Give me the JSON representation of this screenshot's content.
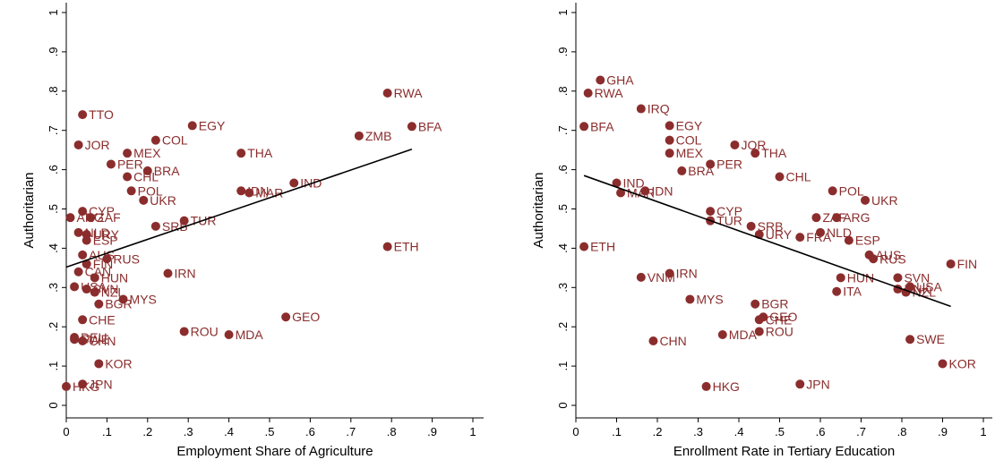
{
  "chart_data": [
    {
      "type": "scatter",
      "xlabel": "Employment Share of Agriculture",
      "ylabel": "Authoritarian",
      "xlim": [
        0,
        1
      ],
      "ylim": [
        0,
        1
      ],
      "xticks": [
        "0",
        ".1",
        ".2",
        ".3",
        ".4",
        ".5",
        ".6",
        ".7",
        ".8",
        ".9",
        "1"
      ],
      "yticks": [
        "0",
        ".1",
        ".2",
        ".3",
        ".4",
        ".5",
        ".6",
        ".7",
        ".8",
        ".9",
        "1"
      ],
      "marker_color": "#8b2d2d",
      "fit_line": {
        "x": [
          0.0,
          0.85
        ],
        "y": [
          0.352,
          0.652
        ]
      },
      "points": [
        {
          "label": "RWA",
          "x": 0.79,
          "y": 0.795
        },
        {
          "label": "BFA",
          "x": 0.85,
          "y": 0.71
        },
        {
          "label": "ZMB",
          "x": 0.72,
          "y": 0.686
        },
        {
          "label": "TTO",
          "x": 0.04,
          "y": 0.74
        },
        {
          "label": "EGY",
          "x": 0.31,
          "y": 0.712
        },
        {
          "label": "JOR",
          "x": 0.03,
          "y": 0.663
        },
        {
          "label": "COL",
          "x": 0.22,
          "y": 0.675
        },
        {
          "label": "MEX",
          "x": 0.15,
          "y": 0.642
        },
        {
          "label": "THA",
          "x": 0.43,
          "y": 0.642
        },
        {
          "label": "PER",
          "x": 0.11,
          "y": 0.614
        },
        {
          "label": "BRA",
          "x": 0.2,
          "y": 0.597
        },
        {
          "label": "CHL",
          "x": 0.15,
          "y": 0.582
        },
        {
          "label": "IND",
          "x": 0.56,
          "y": 0.566
        },
        {
          "label": "POL",
          "x": 0.16,
          "y": 0.546
        },
        {
          "label": "IDN",
          "x": 0.43,
          "y": 0.546
        },
        {
          "label": "MAR",
          "x": 0.45,
          "y": 0.541
        },
        {
          "label": "UKR",
          "x": 0.19,
          "y": 0.522
        },
        {
          "label": "CYP",
          "x": 0.04,
          "y": 0.494
        },
        {
          "label": "ARG",
          "x": 0.01,
          "y": 0.478
        },
        {
          "label": "ZAF",
          "x": 0.06,
          "y": 0.478
        },
        {
          "label": "TUR",
          "x": 0.29,
          "y": 0.47
        },
        {
          "label": "SRB",
          "x": 0.22,
          "y": 0.456
        },
        {
          "label": "NLD",
          "x": 0.03,
          "y": 0.44
        },
        {
          "label": "URY",
          "x": 0.05,
          "y": 0.435
        },
        {
          "label": "ESP",
          "x": 0.05,
          "y": 0.42
        },
        {
          "label": "ETH",
          "x": 0.79,
          "y": 0.404
        },
        {
          "label": "AUS",
          "x": 0.04,
          "y": 0.383
        },
        {
          "label": "RUS",
          "x": 0.1,
          "y": 0.373
        },
        {
          "label": "FIN",
          "x": 0.05,
          "y": 0.36
        },
        {
          "label": "CAN",
          "x": 0.03,
          "y": 0.34
        },
        {
          "label": "HUN",
          "x": 0.07,
          "y": 0.325
        },
        {
          "label": "IRN",
          "x": 0.25,
          "y": 0.336
        },
        {
          "label": "USA",
          "x": 0.02,
          "y": 0.302
        },
        {
          "label": "SVN",
          "x": 0.05,
          "y": 0.296
        },
        {
          "label": "NZL",
          "x": 0.07,
          "y": 0.288
        },
        {
          "label": "MYS",
          "x": 0.14,
          "y": 0.27
        },
        {
          "label": "BGR",
          "x": 0.08,
          "y": 0.258
        },
        {
          "label": "GEO",
          "x": 0.54,
          "y": 0.225
        },
        {
          "label": "CHE",
          "x": 0.04,
          "y": 0.218
        },
        {
          "label": "ROU",
          "x": 0.29,
          "y": 0.188
        },
        {
          "label": "MDA",
          "x": 0.4,
          "y": 0.18
        },
        {
          "label": "DEU",
          "x": 0.02,
          "y": 0.173
        },
        {
          "label": "SWE",
          "x": 0.02,
          "y": 0.168
        },
        {
          "label": "CHN",
          "x": 0.04,
          "y": 0.164
        },
        {
          "label": "KOR",
          "x": 0.08,
          "y": 0.106
        },
        {
          "label": "JPN",
          "x": 0.04,
          "y": 0.054
        },
        {
          "label": "HKG",
          "x": 0.0,
          "y": 0.048
        }
      ]
    },
    {
      "type": "scatter",
      "xlabel": "Enrollment Rate in Tertiary Education",
      "ylabel": "Authoritarian",
      "xlim": [
        0,
        1
      ],
      "ylim": [
        0,
        1
      ],
      "xticks": [
        "0",
        ".1",
        ".2",
        ".3",
        ".4",
        ".5",
        ".6",
        ".7",
        ".8",
        ".9",
        "1"
      ],
      "yticks": [
        "0",
        ".1",
        ".2",
        ".3",
        ".4",
        ".5",
        ".6",
        ".7",
        ".8",
        ".9",
        "1"
      ],
      "marker_color": "#8b2d2d",
      "fit_line": {
        "x": [
          0.02,
          0.92
        ],
        "y": [
          0.585,
          0.252
        ]
      },
      "points": [
        {
          "label": "GHA",
          "x": 0.06,
          "y": 0.828
        },
        {
          "label": "RWA",
          "x": 0.03,
          "y": 0.795
        },
        {
          "label": "IRQ",
          "x": 0.16,
          "y": 0.755
        },
        {
          "label": "BFA",
          "x": 0.02,
          "y": 0.71
        },
        {
          "label": "EGY",
          "x": 0.23,
          "y": 0.712
        },
        {
          "label": "COL",
          "x": 0.23,
          "y": 0.675
        },
        {
          "label": "JOR",
          "x": 0.39,
          "y": 0.663
        },
        {
          "label": "MEX",
          "x": 0.23,
          "y": 0.642
        },
        {
          "label": "THA",
          "x": 0.44,
          "y": 0.642
        },
        {
          "label": "PER",
          "x": 0.33,
          "y": 0.614
        },
        {
          "label": "BRA",
          "x": 0.26,
          "y": 0.597
        },
        {
          "label": "CHL",
          "x": 0.5,
          "y": 0.582
        },
        {
          "label": "IND",
          "x": 0.1,
          "y": 0.566
        },
        {
          "label": "MAR",
          "x": 0.11,
          "y": 0.541
        },
        {
          "label": "IDN",
          "x": 0.17,
          "y": 0.546
        },
        {
          "label": "POL",
          "x": 0.63,
          "y": 0.546
        },
        {
          "label": "UKR",
          "x": 0.71,
          "y": 0.522
        },
        {
          "label": "CYP",
          "x": 0.33,
          "y": 0.494
        },
        {
          "label": "ZAF",
          "x": 0.59,
          "y": 0.478
        },
        {
          "label": "ARG",
          "x": 0.64,
          "y": 0.478
        },
        {
          "label": "TUR",
          "x": 0.33,
          "y": 0.47
        },
        {
          "label": "SRB",
          "x": 0.43,
          "y": 0.456
        },
        {
          "label": "URY",
          "x": 0.45,
          "y": 0.435
        },
        {
          "label": "NLD",
          "x": 0.6,
          "y": 0.44
        },
        {
          "label": "FRA",
          "x": 0.55,
          "y": 0.428
        },
        {
          "label": "ESP",
          "x": 0.67,
          "y": 0.42
        },
        {
          "label": "ETH",
          "x": 0.02,
          "y": 0.404
        },
        {
          "label": "AUS",
          "x": 0.72,
          "y": 0.383
        },
        {
          "label": "RUS",
          "x": 0.73,
          "y": 0.373
        },
        {
          "label": "FIN",
          "x": 0.92,
          "y": 0.36
        },
        {
          "label": "IRN",
          "x": 0.23,
          "y": 0.336
        },
        {
          "label": "VNM",
          "x": 0.16,
          "y": 0.326
        },
        {
          "label": "HUN",
          "x": 0.65,
          "y": 0.325
        },
        {
          "label": "SVN",
          "x": 0.79,
          "y": 0.325
        },
        {
          "label": "USA",
          "x": 0.82,
          "y": 0.302
        },
        {
          "label": "DNK",
          "x": 0.79,
          "y": 0.296
        },
        {
          "label": "NZL",
          "x": 0.81,
          "y": 0.288
        },
        {
          "label": "ITA",
          "x": 0.64,
          "y": 0.29
        },
        {
          "label": "MYS",
          "x": 0.28,
          "y": 0.27
        },
        {
          "label": "BGR",
          "x": 0.44,
          "y": 0.258
        },
        {
          "label": "GEO",
          "x": 0.46,
          "y": 0.225
        },
        {
          "label": "CHE",
          "x": 0.45,
          "y": 0.218
        },
        {
          "label": "ROU",
          "x": 0.45,
          "y": 0.188
        },
        {
          "label": "MDA",
          "x": 0.36,
          "y": 0.18
        },
        {
          "label": "SWE",
          "x": 0.82,
          "y": 0.168
        },
        {
          "label": "CHN",
          "x": 0.19,
          "y": 0.164
        },
        {
          "label": "KOR",
          "x": 0.9,
          "y": 0.106
        },
        {
          "label": "JPN",
          "x": 0.55,
          "y": 0.054
        },
        {
          "label": "HKG",
          "x": 0.32,
          "y": 0.048
        }
      ]
    }
  ]
}
